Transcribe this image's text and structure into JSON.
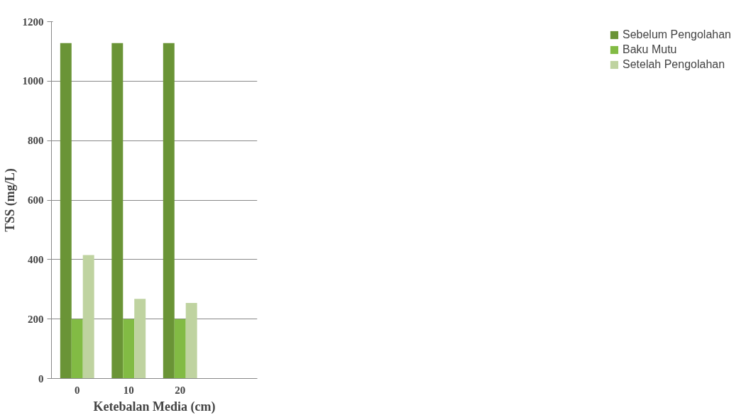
{
  "chart_data": {
    "type": "bar",
    "xlabel": "Ketebalan Media (cm)",
    "ylabel": "TSS (mg/L)",
    "categories": [
      "0",
      "10",
      "20",
      null
    ],
    "series": [
      {
        "name": "Sebelum Pengolahan",
        "color": "#6a9436",
        "values": [
          1128,
          1128,
          1128,
          null
        ]
      },
      {
        "name": "Baku Mutu",
        "color": "#82bb44",
        "values": [
          200,
          200,
          200,
          null
        ]
      },
      {
        "name": "Setelah Pengolahan",
        "color": "#bfd3a0",
        "values": [
          415,
          268,
          254,
          null
        ]
      }
    ],
    "ylim": [
      0,
      1200
    ],
    "yticks": [
      0,
      200,
      400,
      600,
      800,
      1000,
      1200
    ],
    "grid": "y",
    "legend": "right"
  }
}
